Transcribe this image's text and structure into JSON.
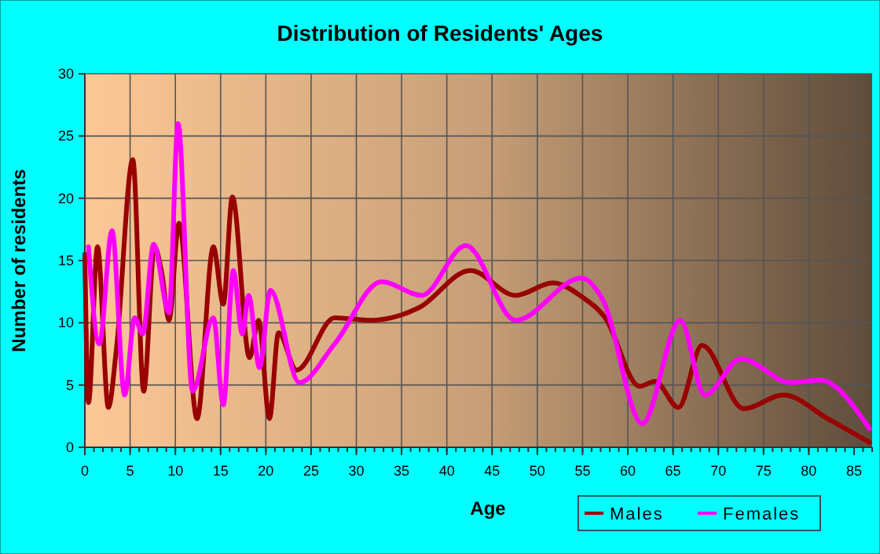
{
  "chart_data": {
    "type": "line",
    "title": "Distribution of Residents' Ages",
    "xlabel": "Age",
    "ylabel": "Number of residents",
    "xlim": [
      0,
      87
    ],
    "xticks": [
      0,
      5,
      10,
      15,
      20,
      25,
      30,
      35,
      40,
      45,
      50,
      55,
      60,
      65,
      70,
      75,
      80,
      85
    ],
    "ylim": [
      0,
      30
    ],
    "yticks": [
      0,
      5,
      10,
      15,
      20,
      25,
      30
    ],
    "grid": true,
    "legend": "bottom right",
    "line_style": "solid",
    "marker": "none",
    "series": [
      {
        "name": "Males",
        "color": "#990000",
        "x": [
          0,
          0.4,
          1.4,
          2.6,
          3.5,
          5.3,
          6.5,
          7.7,
          8.5,
          9.3,
          10.4,
          12.4,
          14.2,
          15.3,
          16.3,
          18.2,
          19.2,
          20.4,
          21.4,
          23.4,
          27.6,
          31.6,
          36.9,
          42.6,
          47.6,
          51.7,
          54.9,
          57.5,
          61.3,
          63,
          65.6,
          68.2,
          72.8,
          77.2,
          82.1,
          86.7
        ],
        "values": [
          15.5,
          3.6,
          16.1,
          3.2,
          8,
          23.1,
          4.5,
          16.1,
          14,
          10.2,
          18,
          2.3,
          16.1,
          11.5,
          20.1,
          7.2,
          10.2,
          2.3,
          9.2,
          6.2,
          10.4,
          10.2,
          11.2,
          14.2,
          12.2,
          13.2,
          12.1,
          10.4,
          4.9,
          5.3,
          3.2,
          8.2,
          3.1,
          4.2,
          2.3,
          0.4
        ]
      },
      {
        "name": "Females",
        "color": "#ff00ff",
        "x": [
          0.4,
          1.6,
          3,
          4.4,
          5.5,
          6.4,
          7.6,
          9.3,
          10.3,
          11.9,
          14.2,
          15.3,
          16.4,
          17.4,
          18.1,
          19.3,
          20.5,
          23.7,
          27.6,
          32.8,
          37.2,
          42.1,
          47.6,
          54.9,
          57.2,
          61.6,
          65.8,
          68.5,
          72.5,
          78,
          81.2,
          86.7
        ],
        "values": [
          16.1,
          8.3,
          17.4,
          4.2,
          10.4,
          9.1,
          16.3,
          10.8,
          26,
          4.5,
          10.4,
          3.4,
          14.2,
          9.1,
          12.2,
          6.4,
          12.6,
          5.2,
          8.3,
          13.3,
          12.2,
          16.2,
          10.2,
          13.6,
          11.9,
          1.9,
          10.2,
          4.2,
          7.1,
          5.2,
          5.4,
          1.5
        ]
      }
    ]
  }
}
